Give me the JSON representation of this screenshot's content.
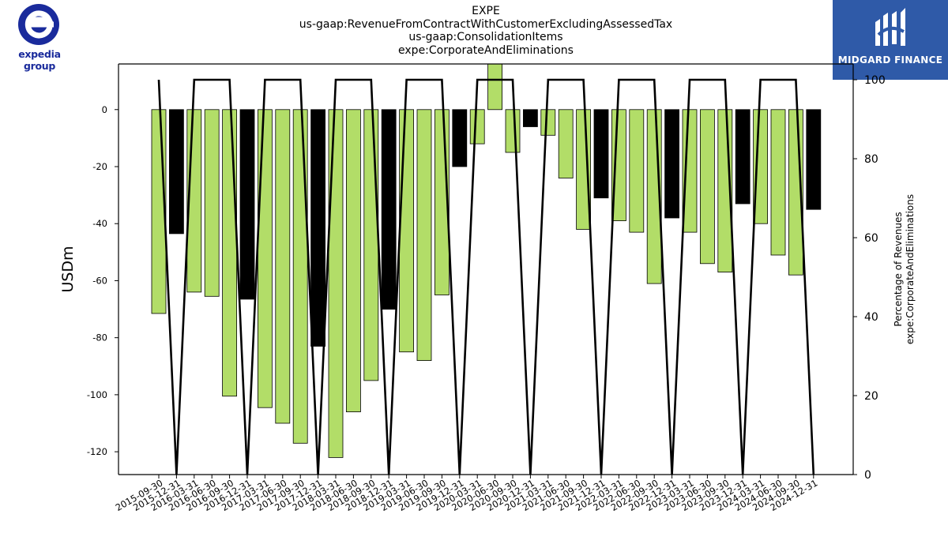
{
  "header": {
    "ticker": "EXPE",
    "concept": "us-gaap:RevenueFromContractWithCustomerExcludingAssessedTax",
    "axis": "us-gaap:ConsolidationItems",
    "member": "expe:CorporateAndEliminations"
  },
  "logos": {
    "left_text": "expedia group",
    "right_text": "MIDGARD FINANCE"
  },
  "colors": {
    "bar_quarter": "#b2dd68",
    "bar_year_end": "#000000",
    "line": "#000000",
    "logo_left": "#1a2b9c",
    "logo_right_bg": "#2f5aa8"
  },
  "chart_data": {
    "type": "bar",
    "ylabel": "USDm",
    "y2label": [
      "Percentage of Revenues",
      "expe:CorporateAndEliminations"
    ],
    "ylim": [
      -128,
      16
    ],
    "y2lim": [
      0,
      104
    ],
    "yticks": [
      0,
      -20,
      -40,
      -60,
      -80,
      -100,
      -120
    ],
    "y2ticks": [
      0,
      20,
      40,
      60,
      80,
      100
    ],
    "categories": [
      "2015-09-30",
      "2015-12-31",
      "2016-03-31",
      "2016-06-30",
      "2016-09-30",
      "2016-12-31",
      "2017-03-31",
      "2017-06-30",
      "2017-09-30",
      "2017-12-31",
      "2018-03-31",
      "2018-06-30",
      "2018-09-30",
      "2018-12-31",
      "2019-03-31",
      "2019-06-30",
      "2019-09-30",
      "2019-12-31",
      "2020-03-31",
      "2020-06-30",
      "2020-09-30",
      "2020-12-31",
      "2021-03-31",
      "2021-06-30",
      "2021-09-30",
      "2021-12-31",
      "2022-03-31",
      "2022-06-30",
      "2022-09-30",
      "2022-12-31",
      "2023-03-31",
      "2023-06-30",
      "2023-09-30",
      "2023-12-31",
      "2024-03-31",
      "2024-06-30",
      "2024-09-30",
      "2024-12-31"
    ],
    "values": [
      -71.5,
      -43.5,
      -64,
      -65.5,
      -100.5,
      -66.5,
      -104.5,
      -110,
      -117,
      -83,
      -122,
      -106,
      -95,
      -70,
      -85,
      -88,
      -65,
      -20,
      -12,
      18,
      -15,
      -6,
      -9,
      -24,
      -42,
      -31,
      -39,
      -43,
      -61,
      -38,
      -43,
      -54,
      -57,
      -33,
      -40,
      -51,
      -58,
      -35
    ],
    "year_end": [
      false,
      true,
      false,
      false,
      false,
      true,
      false,
      false,
      false,
      true,
      false,
      false,
      false,
      true,
      false,
      false,
      false,
      true,
      false,
      false,
      false,
      true,
      false,
      false,
      false,
      true,
      false,
      false,
      false,
      true,
      false,
      false,
      false,
      true,
      false,
      false,
      false,
      true
    ],
    "series": [
      {
        "values": [
          100,
          0,
          100,
          100,
          100,
          0,
          100,
          100,
          100,
          0,
          100,
          100,
          100,
          0,
          100,
          100,
          100,
          0,
          100,
          100,
          100,
          0,
          100,
          100,
          100,
          0,
          100,
          100,
          100,
          0,
          100,
          100,
          100,
          0,
          100,
          100,
          100,
          0
        ]
      }
    ],
    "grid": false,
    "legend": "none"
  }
}
